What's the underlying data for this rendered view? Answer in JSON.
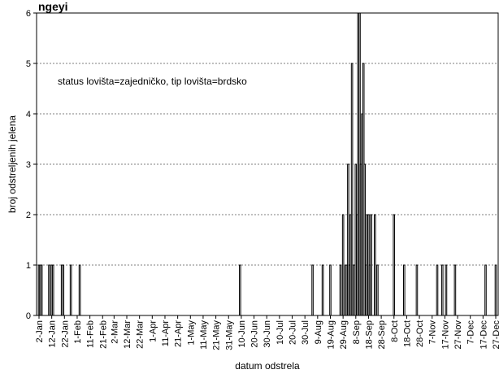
{
  "chart_data": {
    "type": "bar",
    "title": "",
    "title_fragment": "ngeyi",
    "xlabel": "datum odstrela",
    "ylabel": "broj odstreljenih jelena",
    "annotation": "status lovišta=zajedničko, tip lovišta=brdsko",
    "ylim": [
      0,
      6
    ],
    "yticks": [
      0,
      1,
      2,
      3,
      4,
      5,
      6
    ],
    "grid": "dashed",
    "x_domain_days": [
      2,
      361
    ],
    "xtick_labels": [
      "2-Jan",
      "12-Jan",
      "22-Jan",
      "1-Feb",
      "11-Feb",
      "21-Feb",
      "2-Mar",
      "12-Mar",
      "22-Mar",
      "1-Apr",
      "11-Apr",
      "21-Apr",
      "1-May",
      "11-May",
      "21-May",
      "31-May",
      "10-Jun",
      "20-Jun",
      "30-Jun",
      "10-Jul",
      "20-Jul",
      "30-Jul",
      "9-Aug",
      "19-Aug",
      "29-Aug",
      "8-Sep",
      "18-Sep",
      "28-Sep",
      "8-Oct",
      "18-Oct",
      "28-Oct",
      "7-Nov",
      "17-Nov",
      "27-Nov",
      "7-Dec",
      "17-Dec",
      "27-Dec"
    ],
    "bars": [
      {
        "x": "2-Jan",
        "y": 1
      },
      {
        "x": "3-Jan",
        "y": 1
      },
      {
        "x": "4-Jan",
        "y": 1
      },
      {
        "x": "10-Jan",
        "y": 1
      },
      {
        "x": "12-Jan",
        "y": 1
      },
      {
        "x": "13-Jan",
        "y": 1
      },
      {
        "x": "20-Jan",
        "y": 1
      },
      {
        "x": "21-Jan",
        "y": 1
      },
      {
        "x": "27-Jan",
        "y": 1
      },
      {
        "x": "3-Feb",
        "y": 1
      },
      {
        "x": "9-Jun",
        "y": 1
      },
      {
        "x": "5-Aug",
        "y": 1
      },
      {
        "x": "13-Aug",
        "y": 1
      },
      {
        "x": "19-Aug",
        "y": 1
      },
      {
        "x": "27-Aug",
        "y": 1
      },
      {
        "x": "29-Aug",
        "y": 2
      },
      {
        "x": "31-Aug",
        "y": 1
      },
      {
        "x": "1-Sep",
        "y": 1
      },
      {
        "x": "2-Sep",
        "y": 3
      },
      {
        "x": "3-Sep",
        "y": 1
      },
      {
        "x": "4-Sep",
        "y": 2
      },
      {
        "x": "5-Sep",
        "y": 5
      },
      {
        "x": "6-Sep",
        "y": 1
      },
      {
        "x": "7-Sep",
        "y": 1
      },
      {
        "x": "8-Sep",
        "y": 3
      },
      {
        "x": "9-Sep",
        "y": 2
      },
      {
        "x": "10-Sep",
        "y": 6
      },
      {
        "x": "11-Sep",
        "y": 6
      },
      {
        "x": "12-Sep",
        "y": 3
      },
      {
        "x": "13-Sep",
        "y": 4
      },
      {
        "x": "14-Sep",
        "y": 5
      },
      {
        "x": "15-Sep",
        "y": 3
      },
      {
        "x": "16-Sep",
        "y": 1
      },
      {
        "x": "17-Sep",
        "y": 2
      },
      {
        "x": "18-Sep",
        "y": 2
      },
      {
        "x": "19-Sep",
        "y": 1
      },
      {
        "x": "20-Sep",
        "y": 2
      },
      {
        "x": "23-Sep",
        "y": 2
      },
      {
        "x": "25-Sep",
        "y": 1
      },
      {
        "x": "8-Oct",
        "y": 2
      },
      {
        "x": "16-Oct",
        "y": 1
      },
      {
        "x": "26-Oct",
        "y": 1
      },
      {
        "x": "11-Nov",
        "y": 1
      },
      {
        "x": "15-Nov",
        "y": 1
      },
      {
        "x": "18-Nov",
        "y": 1
      },
      {
        "x": "25-Nov",
        "y": 1
      },
      {
        "x": "19-Dec",
        "y": 1
      },
      {
        "x": "27-Dec",
        "y": 1
      }
    ]
  }
}
